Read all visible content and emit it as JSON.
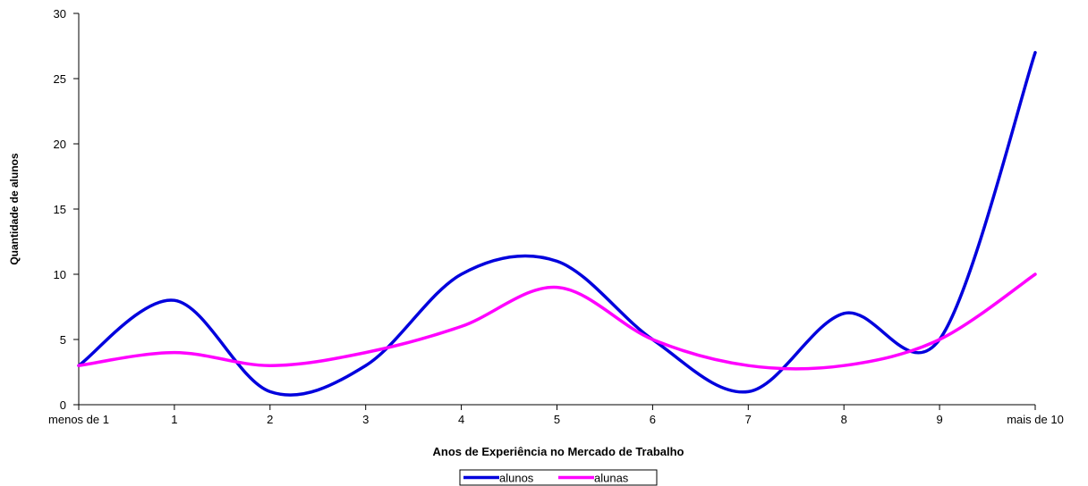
{
  "chart_data": {
    "type": "line",
    "title": "",
    "xlabel": "Anos de Experiência no Mercado de Trabalho",
    "ylabel": "Quantidade de alunos",
    "categories": [
      "menos de 1",
      "1",
      "2",
      "3",
      "4",
      "5",
      "6",
      "7",
      "8",
      "9",
      "mais de 10"
    ],
    "ylim": [
      0,
      30
    ],
    "yticks": [
      0,
      5,
      10,
      15,
      20,
      25,
      30
    ],
    "smooth": true,
    "grid": false,
    "legend_position": "bottom",
    "series": [
      {
        "name": "alunos",
        "color": "#0000dd",
        "values": [
          3,
          8,
          1,
          3,
          10,
          11,
          5,
          1,
          7,
          5,
          27
        ]
      },
      {
        "name": "alunas",
        "color": "#ff00ff",
        "values": [
          3,
          4,
          3,
          4,
          6,
          9,
          5,
          3,
          3,
          5,
          10
        ]
      }
    ]
  }
}
